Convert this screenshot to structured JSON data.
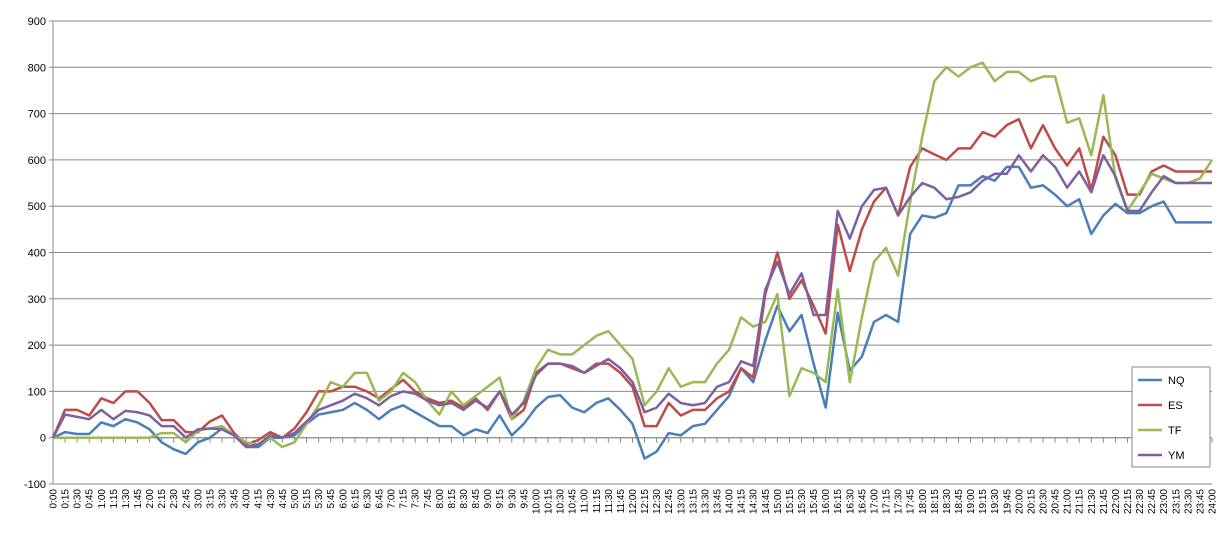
{
  "chart_data": {
    "type": "line",
    "categories": [
      "0:00",
      "0:15",
      "0:30",
      "0:45",
      "1:00",
      "1:15",
      "1:30",
      "1:45",
      "2:00",
      "2:15",
      "2:30",
      "2:45",
      "3:00",
      "3:15",
      "3:30",
      "3:45",
      "4:00",
      "4:15",
      "4:30",
      "4:45",
      "5:00",
      "5:15",
      "5:30",
      "5:45",
      "6:00",
      "6:15",
      "6:30",
      "6:45",
      "7:00",
      "7:15",
      "7:30",
      "7:45",
      "8:00",
      "8:15",
      "8:30",
      "8:45",
      "9:00",
      "9:15",
      "9:30",
      "9:45",
      "10:00",
      "10:15",
      "10:30",
      "10:45",
      "11:00",
      "11:15",
      "11:30",
      "11:45",
      "12:00",
      "12:15",
      "12:30",
      "12:45",
      "13:00",
      "13:15",
      "13:30",
      "13:45",
      "14:00",
      "14:15",
      "14:30",
      "14:45",
      "15:00",
      "15:15",
      "15:30",
      "15:45",
      "16:00",
      "16:15",
      "16:30",
      "16:45",
      "17:00",
      "17:15",
      "17:30",
      "17:45",
      "18:00",
      "18:15",
      "18:30",
      "18:45",
      "19:00",
      "19:15",
      "19:30",
      "19:45",
      "20:00",
      "20:15",
      "20:30",
      "20:45",
      "21:00",
      "21:15",
      "21:30",
      "21:45",
      "22:00",
      "22:15",
      "22:30",
      "22:45",
      "23:00",
      "23:15",
      "23:30",
      "23:45",
      "24:00"
    ],
    "series": [
      {
        "name": "NQ",
        "color": "#4a7ebb",
        "values": [
          0,
          12,
          8,
          8,
          33,
          25,
          40,
          33,
          18,
          -10,
          -25,
          -35,
          -10,
          0,
          20,
          5,
          -20,
          -20,
          0,
          0,
          5,
          30,
          50,
          55,
          60,
          75,
          60,
          40,
          60,
          70,
          55,
          40,
          25,
          25,
          5,
          18,
          10,
          48,
          5,
          30,
          65,
          88,
          92,
          65,
          55,
          75,
          85,
          60,
          30,
          -45,
          -30,
          10,
          5,
          25,
          30,
          60,
          90,
          150,
          120,
          210,
          285,
          230,
          265,
          160,
          65,
          270,
          145,
          175,
          250,
          265,
          250,
          440,
          480,
          475,
          485,
          545,
          545,
          565,
          555,
          585,
          585,
          540,
          545,
          525,
          500,
          515,
          440,
          480,
          505,
          485,
          485,
          500,
          510,
          465,
          465,
          465,
          465
        ]
      },
      {
        "name": "ES",
        "color": "#be4b48",
        "values": [
          0,
          60,
          60,
          48,
          85,
          75,
          100,
          100,
          75,
          38,
          38,
          12,
          12,
          35,
          48,
          10,
          -15,
          -5,
          12,
          0,
          20,
          55,
          100,
          100,
          110,
          110,
          100,
          85,
          105,
          125,
          100,
          85,
          75,
          80,
          65,
          85,
          60,
          100,
          40,
          60,
          140,
          160,
          160,
          150,
          140,
          160,
          160,
          140,
          110,
          25,
          25,
          75,
          48,
          60,
          60,
          85,
          100,
          150,
          130,
          310,
          400,
          300,
          340,
          285,
          225,
          460,
          360,
          450,
          510,
          540,
          480,
          585,
          625,
          612,
          600,
          625,
          625,
          660,
          650,
          675,
          688,
          625,
          675,
          625,
          588,
          625,
          535,
          650,
          610,
          525,
          525,
          575,
          588,
          575,
          575,
          575,
          575
        ]
      },
      {
        "name": "TF",
        "color": "#98b954",
        "values": [
          0,
          0,
          0,
          0,
          0,
          0,
          0,
          0,
          0,
          10,
          10,
          -10,
          15,
          20,
          25,
          5,
          -10,
          -15,
          0,
          -20,
          -10,
          30,
          70,
          120,
          110,
          140,
          140,
          80,
          100,
          140,
          120,
          80,
          50,
          100,
          70,
          90,
          110,
          130,
          40,
          80,
          150,
          190,
          180,
          180,
          200,
          220,
          230,
          200,
          170,
          70,
          100,
          150,
          110,
          120,
          120,
          160,
          190,
          260,
          240,
          250,
          310,
          90,
          150,
          140,
          120,
          320,
          120,
          260,
          380,
          410,
          350,
          510,
          650,
          770,
          800,
          780,
          800,
          810,
          770,
          790,
          790,
          770,
          780,
          780,
          680,
          690,
          610,
          740,
          560,
          490,
          530,
          570,
          560,
          550,
          550,
          560,
          600
        ]
      },
      {
        "name": "YM",
        "color": "#7d60a0",
        "values": [
          0,
          50,
          45,
          40,
          60,
          40,
          58,
          55,
          48,
          25,
          25,
          0,
          18,
          20,
          18,
          5,
          -20,
          -15,
          5,
          0,
          10,
          35,
          60,
          70,
          80,
          95,
          85,
          70,
          90,
          100,
          95,
          80,
          70,
          75,
          60,
          80,
          65,
          100,
          50,
          75,
          135,
          160,
          160,
          155,
          140,
          155,
          170,
          150,
          120,
          55,
          65,
          95,
          75,
          70,
          75,
          110,
          120,
          165,
          155,
          320,
          380,
          310,
          355,
          265,
          265,
          490,
          430,
          500,
          535,
          540,
          480,
          520,
          550,
          540,
          515,
          520,
          530,
          555,
          570,
          570,
          610,
          575,
          610,
          585,
          540,
          575,
          530,
          610,
          565,
          490,
          490,
          530,
          565,
          550,
          550,
          550,
          550
        ]
      }
    ],
    "ylim": [
      -100,
      900
    ],
    "yticks": [
      -100,
      0,
      100,
      200,
      300,
      400,
      500,
      600,
      700,
      800,
      900
    ],
    "grid": true,
    "legend": "lower right"
  }
}
